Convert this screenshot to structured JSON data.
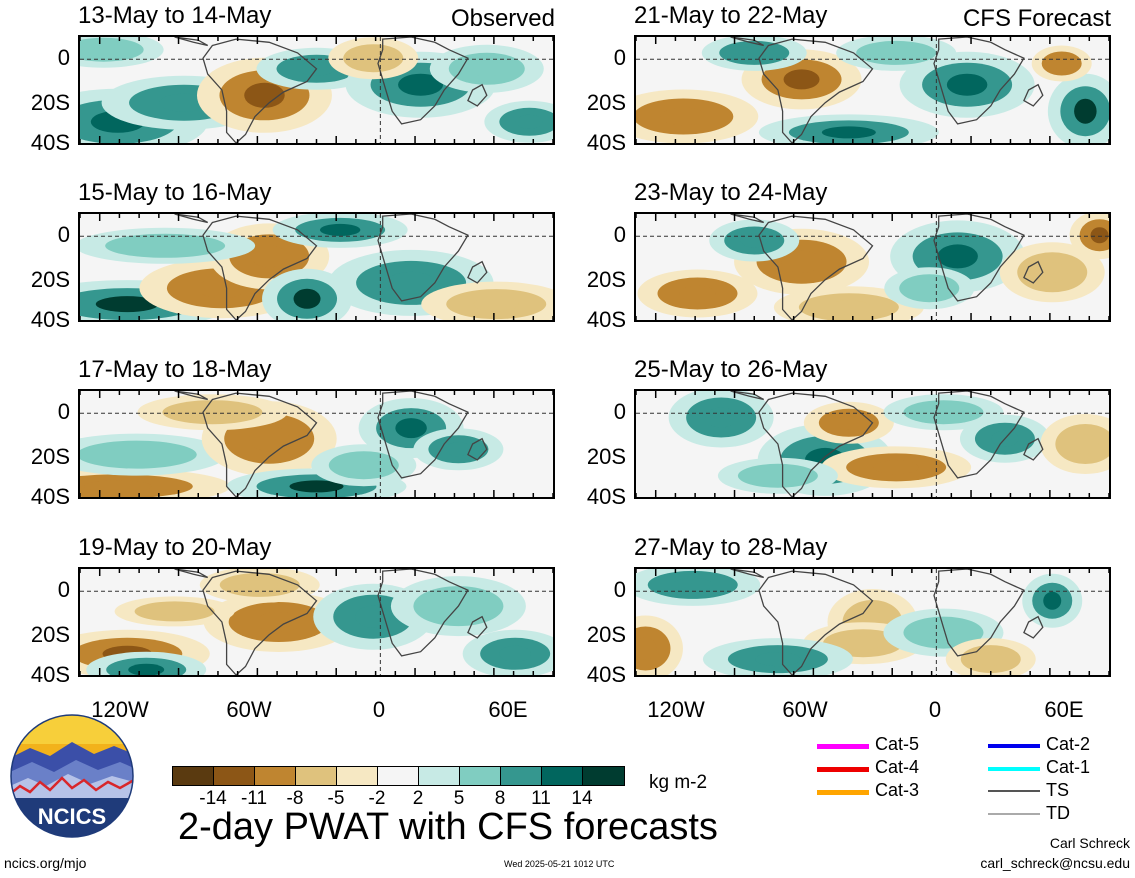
{
  "panels": [
    {
      "title": "13-May to 14-May",
      "tag": "Observed"
    },
    {
      "title": "15-May to 16-May",
      "tag": ""
    },
    {
      "title": "17-May to 18-May",
      "tag": ""
    },
    {
      "title": "19-May to 20-May",
      "tag": ""
    },
    {
      "title": "21-May to 22-May",
      "tag": "CFS Forecast"
    },
    {
      "title": "23-May to 24-May",
      "tag": ""
    },
    {
      "title": "25-May to 26-May",
      "tag": ""
    },
    {
      "title": "27-May to 28-May",
      "tag": ""
    }
  ],
  "axes": {
    "lat_labels": [
      "0",
      "20S",
      "40S"
    ],
    "lon_labels": [
      "120W",
      "60W",
      "0",
      "60E"
    ]
  },
  "colorbar": {
    "colors": [
      "#5a3a10",
      "#8c5616",
      "#bf8530",
      "#dfc27d",
      "#f6e8c3",
      "#f5f5f5",
      "#c7eae5",
      "#80cdc1",
      "#35978f",
      "#01665e",
      "#003c30"
    ],
    "ticks": [
      "-14",
      "-11",
      "-8",
      "-5",
      "-2",
      "2",
      "5",
      "8",
      "11",
      "14"
    ],
    "units": "kg m-2"
  },
  "title": "2-day PWAT with CFS forecasts",
  "legend": [
    {
      "label": "Cat-5",
      "color": "#ff00ff"
    },
    {
      "label": "Cat-4",
      "color": "#ee0000"
    },
    {
      "label": "Cat-3",
      "color": "#ffa500"
    },
    {
      "label": "Cat-2",
      "color": "#0000ee"
    },
    {
      "label": "Cat-1",
      "color": "#00ffff"
    },
    {
      "label": "TS",
      "color": "#555555"
    },
    {
      "label": "TD",
      "color": "#aaaaaa"
    }
  ],
  "logo_text": "NCICS",
  "footer": {
    "left": "ncics.org/mjo",
    "center": "Wed 2025-05-21 1012 UTC",
    "right_name": "Carl Schreck",
    "right_email": "carl_schreck@ncsu.edu"
  }
}
